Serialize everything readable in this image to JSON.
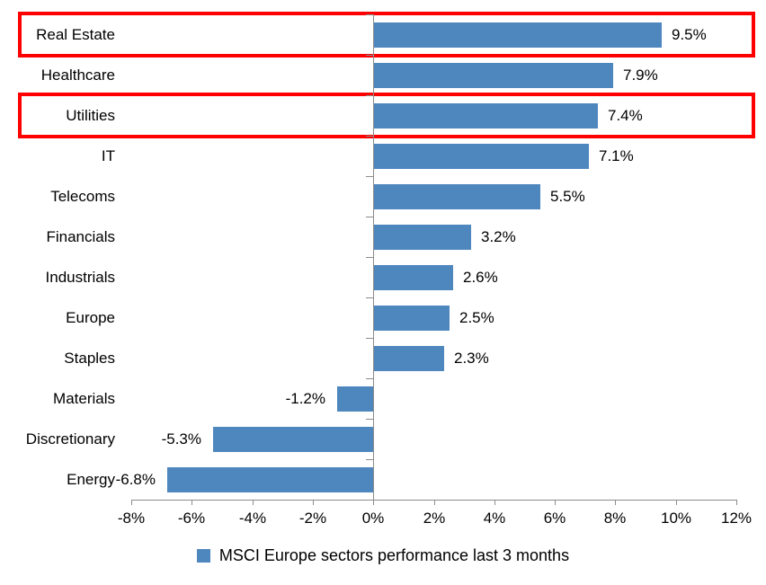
{
  "chart_data": {
    "type": "bar",
    "orientation": "horizontal",
    "categories": [
      "Real Estate",
      "Healthcare",
      "Utilities",
      "IT",
      "Telecoms",
      "Financials",
      "Industrials",
      "Europe",
      "Staples",
      "Materials",
      "Discretionary",
      "Energy"
    ],
    "values": [
      9.5,
      7.9,
      7.4,
      7.1,
      5.5,
      3.2,
      2.6,
      2.5,
      2.3,
      -1.2,
      -5.3,
      -6.8
    ],
    "value_labels": [
      "9.5%",
      "7.9%",
      "7.4%",
      "7.1%",
      "5.5%",
      "3.2%",
      "2.6%",
      "2.5%",
      "2.3%",
      "-1.2%",
      "-5.3%",
      "-6.8%"
    ],
    "x_axis": {
      "min": -8,
      "max": 12,
      "step": 2,
      "tick_labels": [
        "-8%",
        "-6%",
        "-4%",
        "-2%",
        "0%",
        "2%",
        "4%",
        "6%",
        "8%",
        "10%",
        "12%"
      ]
    },
    "highlighted_categories": [
      "Real Estate",
      "Utilities"
    ],
    "legend": {
      "label": "MSCI Europe sectors performance last 3 months",
      "position": "bottom-center",
      "marker": "square"
    },
    "grid": false,
    "colors": {
      "bar": "#4e86be",
      "highlight_box": "#ff0000",
      "axis": "#8c8c8c",
      "text": "#000000",
      "background": "#ffffff"
    }
  }
}
